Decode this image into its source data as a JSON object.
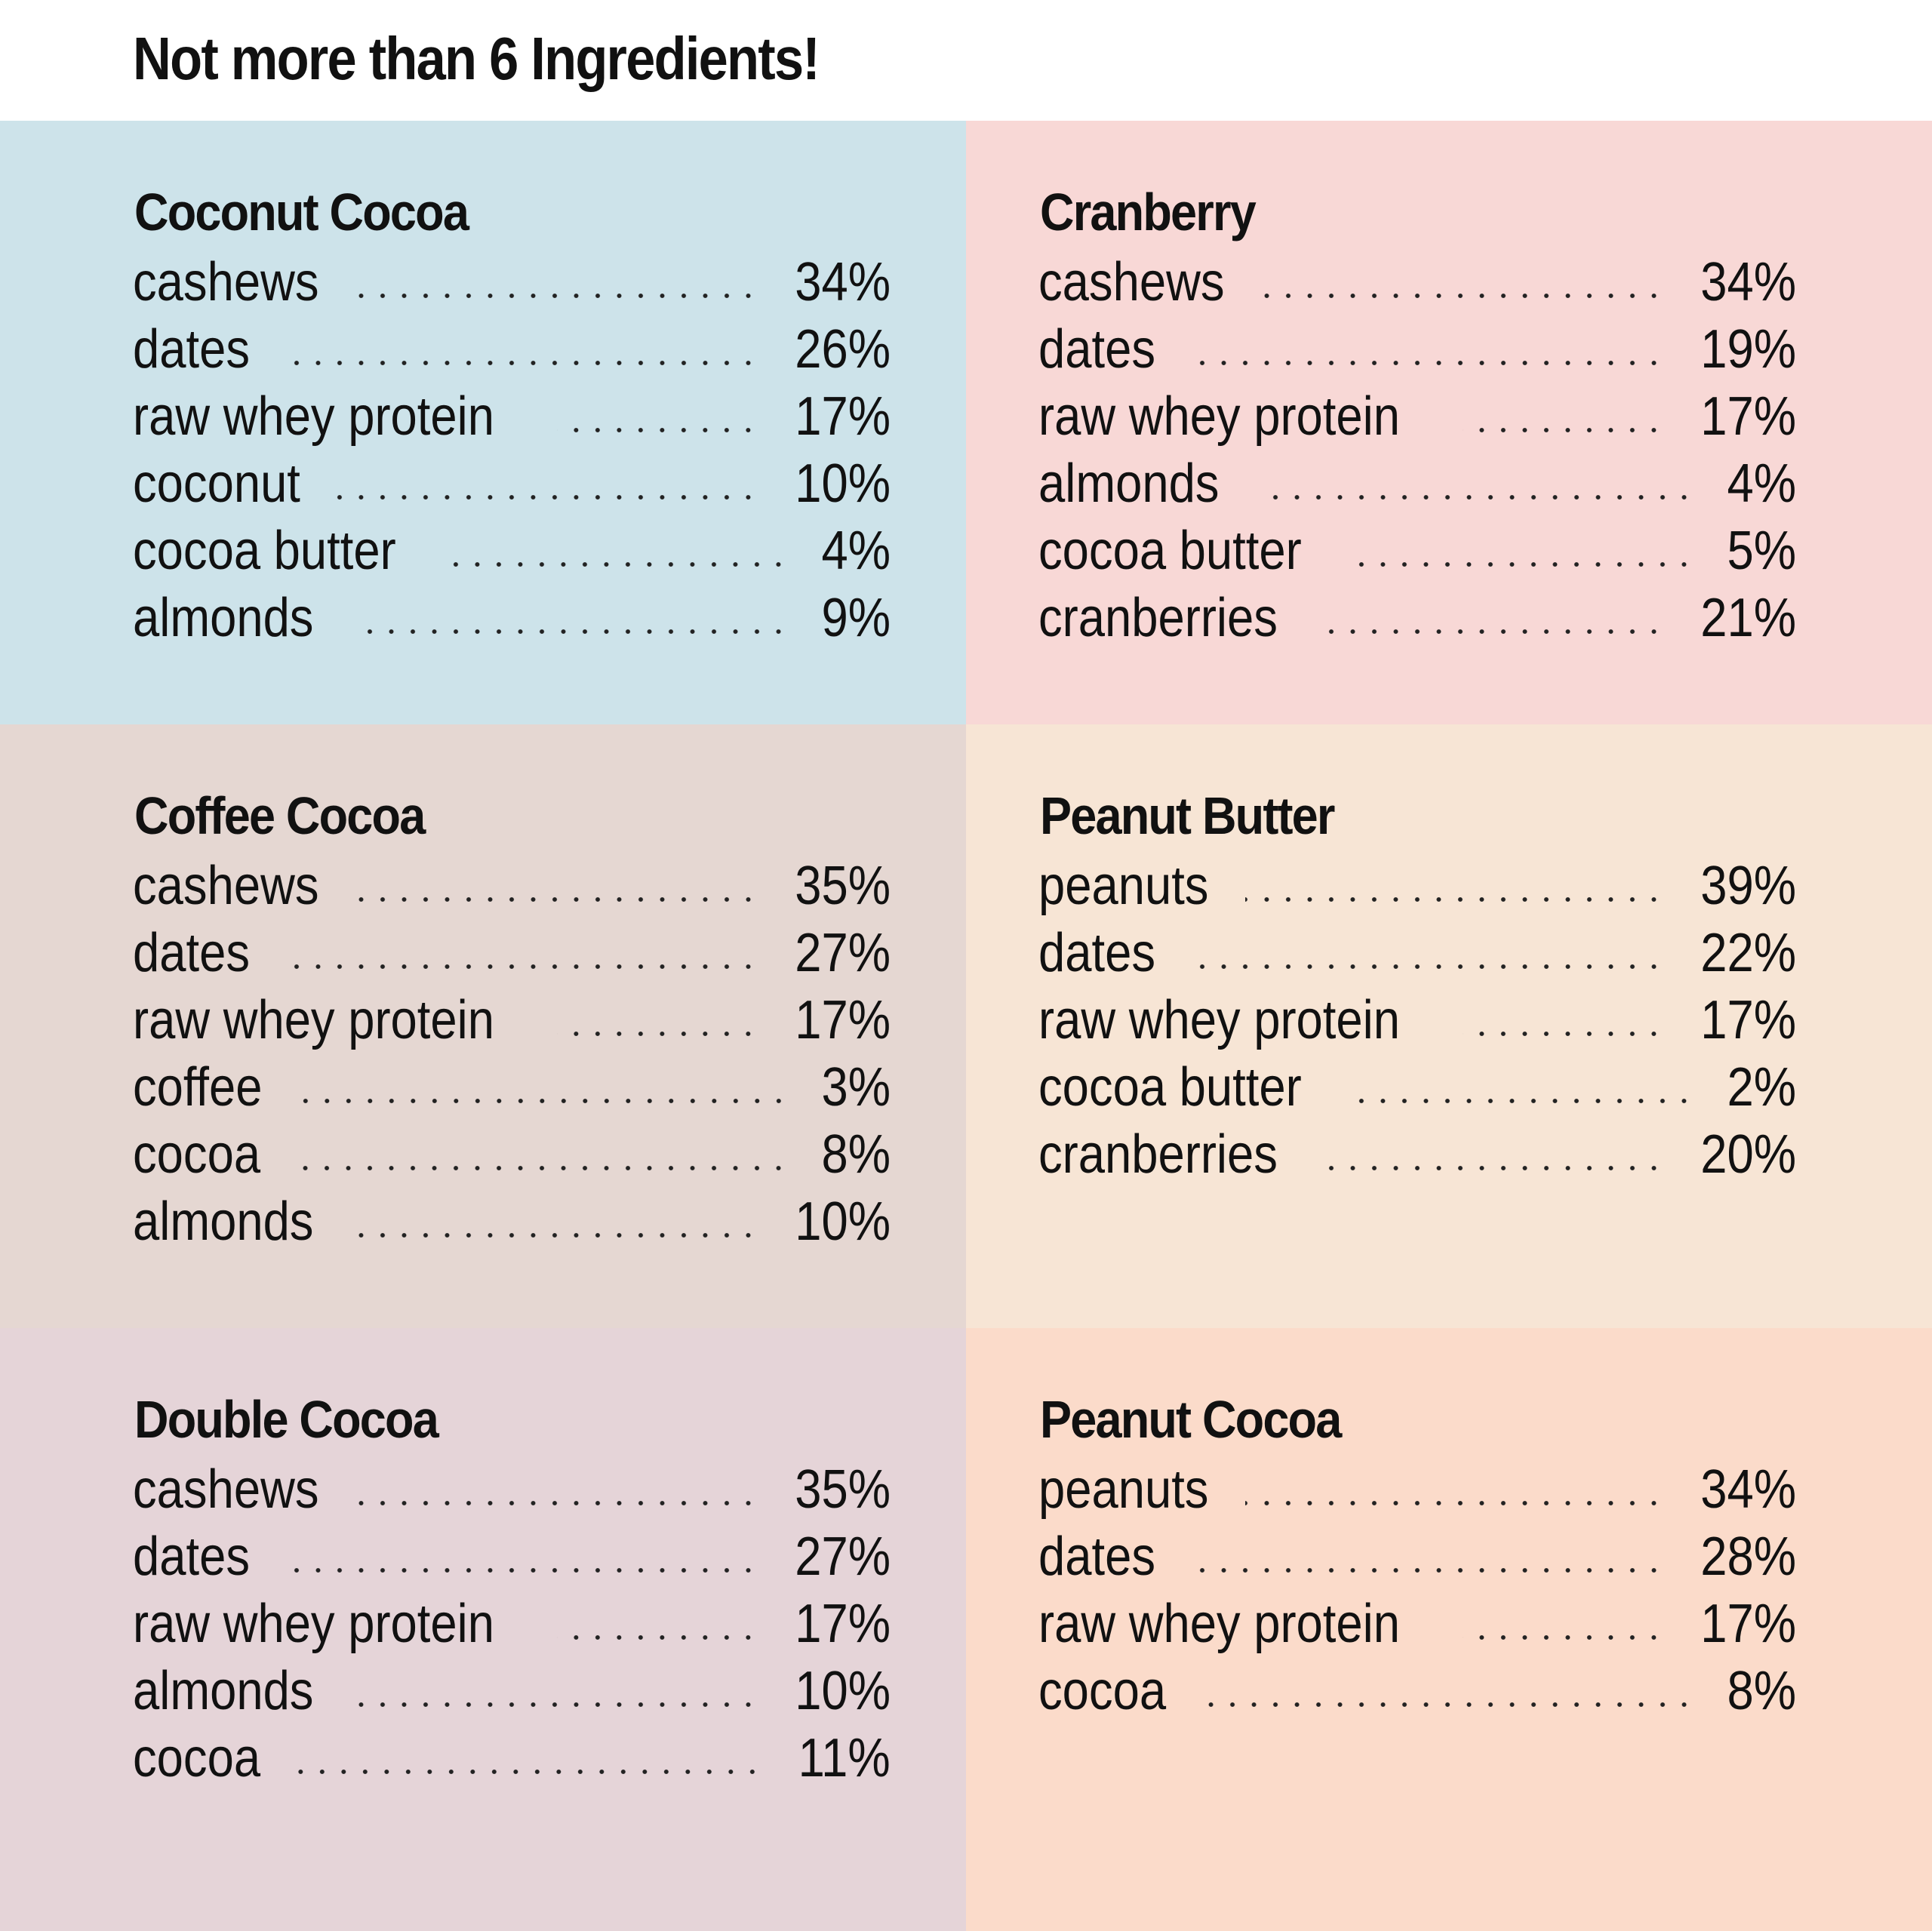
{
  "title": "Not more than 6 Ingredients!",
  "colors": {
    "coconut_cocoa": "#cde3ea",
    "cranberry": "#f8d8d6",
    "coffee_cocoa": "#e5d7d2",
    "peanut_butter": "#f7e5d5",
    "double_cocoa": "#e5d4d8",
    "peanut_cocoa": "#fbdbca"
  },
  "flavors": [
    {
      "name": "Coconut Cocoa",
      "ingredients": [
        {
          "name": "cashews",
          "pct": "34%"
        },
        {
          "name": "dates",
          "pct": "26%"
        },
        {
          "name": "raw whey protein",
          "pct": "17%"
        },
        {
          "name": "coconut",
          "pct": "10%"
        },
        {
          "name": "cocoa butter",
          "pct": "4%"
        },
        {
          "name": "almonds",
          "pct": "9%"
        }
      ]
    },
    {
      "name": "Cranberry",
      "ingredients": [
        {
          "name": "cashews",
          "pct": "34%"
        },
        {
          "name": "dates",
          "pct": "19%"
        },
        {
          "name": "raw whey protein",
          "pct": "17%"
        },
        {
          "name": "almonds",
          "pct": "4%"
        },
        {
          "name": "cocoa butter",
          "pct": "5%"
        },
        {
          "name": "cranberries",
          "pct": "21%"
        }
      ]
    },
    {
      "name": "Coffee Cocoa",
      "ingredients": [
        {
          "name": "cashews",
          "pct": "35%"
        },
        {
          "name": "dates",
          "pct": "27%"
        },
        {
          "name": "raw whey protein",
          "pct": "17%"
        },
        {
          "name": "coffee",
          "pct": "3%"
        },
        {
          "name": "cocoa",
          "pct": "8%"
        },
        {
          "name": "almonds",
          "pct": "10%"
        }
      ]
    },
    {
      "name": "Peanut Butter",
      "ingredients": [
        {
          "name": "peanuts",
          "pct": "39%"
        },
        {
          "name": "dates",
          "pct": "22%"
        },
        {
          "name": "raw whey protein",
          "pct": "17%"
        },
        {
          "name": "cocoa butter",
          "pct": "2%"
        },
        {
          "name": "cranberries",
          "pct": "20%"
        }
      ]
    },
    {
      "name": "Double Cocoa",
      "ingredients": [
        {
          "name": "cashews",
          "pct": "35%"
        },
        {
          "name": "dates",
          "pct": "27%"
        },
        {
          "name": "raw whey protein",
          "pct": "17%"
        },
        {
          "name": "almonds",
          "pct": "10%"
        },
        {
          "name": "cocoa",
          "pct": "11%"
        }
      ]
    },
    {
      "name": "Peanut Cocoa",
      "ingredients": [
        {
          "name": "peanuts",
          "pct": "34%"
        },
        {
          "name": "dates",
          "pct": "28%"
        },
        {
          "name": "raw whey protein",
          "pct": "17%"
        },
        {
          "name": "cocoa",
          "pct": "8%"
        }
      ]
    }
  ]
}
